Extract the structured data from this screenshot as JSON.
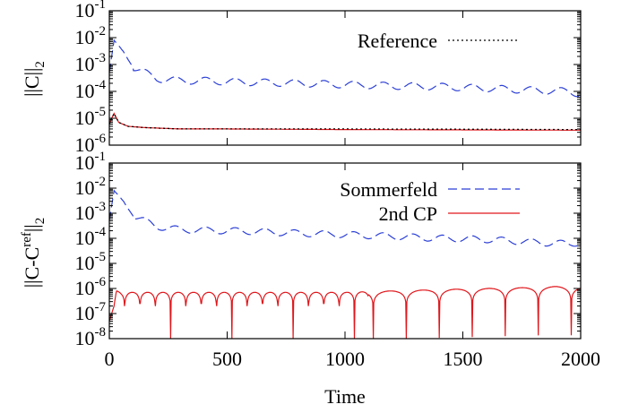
{
  "chart_data": [
    {
      "type": "line",
      "panel": "top",
      "ylabel": "||C||₂",
      "ylabel_parts": {
        "main": "||C||",
        "sub": "2"
      },
      "yscale": "log",
      "ylim": [
        1e-06,
        0.1
      ],
      "xlim": [
        0,
        2000
      ],
      "y_ticks": [
        "10-6",
        "10-5",
        "10-4",
        "10-3",
        "10-2",
        "10-1"
      ],
      "y_tick_exponents": [
        -6,
        -5,
        -4,
        -3,
        -2,
        -1
      ],
      "legend": {
        "position": "top-right",
        "entries": [
          {
            "label": "Reference",
            "style": "dotted",
            "color": "#000000"
          }
        ]
      },
      "series": [
        {
          "name": "Sommerfeld",
          "color": "#2b3fd6",
          "style": "dashed",
          "x": [
            0,
            20,
            40,
            60,
            80,
            100,
            150,
            200,
            300,
            400,
            500,
            600,
            800,
            1000,
            1200,
            1400,
            1600,
            1800,
            1950,
            2000
          ],
          "y": [
            0.0005,
            0.008,
            0.005,
            0.003,
            0.0015,
            0.0008,
            0.0005,
            0.0003,
            0.00025,
            0.00025,
            0.00023,
            0.00022,
            0.0002,
            0.00018,
            0.00016,
            0.00015,
            0.00013,
            0.00011,
            0.0001,
            8e-05
          ]
        },
        {
          "name": "2nd CP",
          "color": "#e0161b",
          "style": "solid",
          "x": [
            0,
            10,
            20,
            40,
            80,
            150,
            300,
            500,
            1000,
            1500,
            2000
          ],
          "y": [
            6e-06,
            1e-05,
            1.5e-05,
            7e-06,
            5e-06,
            4.5e-06,
            4e-06,
            4e-06,
            3.8e-06,
            3.7e-06,
            3.6e-06
          ]
        },
        {
          "name": "Reference",
          "color": "#000000",
          "style": "dotted",
          "x": [
            0,
            10,
            20,
            40,
            80,
            150,
            300,
            500,
            1000,
            1500,
            2000
          ],
          "y": [
            6e-06,
            1e-05,
            1.5e-05,
            7e-06,
            5e-06,
            4.5e-06,
            4e-06,
            4e-06,
            4e-06,
            3.9e-06,
            3.8e-06
          ]
        }
      ]
    },
    {
      "type": "line",
      "panel": "bottom",
      "ylabel": "||C-Cʳᵉᶠ||₂",
      "ylabel_parts": {
        "main": "||C-C",
        "sup": "ref",
        "close": "||",
        "sub": "2"
      },
      "xlabel": "Time",
      "yscale": "log",
      "ylim": [
        1e-08,
        0.1
      ],
      "xlim": [
        0,
        2000
      ],
      "x_ticks": [
        "0",
        "500",
        "1000",
        "1500",
        "2000"
      ],
      "x_tick_values": [
        0,
        500,
        1000,
        1500,
        2000
      ],
      "y_ticks": [
        "10-8",
        "10-7",
        "10-6",
        "10-5",
        "10-4",
        "10-3",
        "10-2",
        "10-1"
      ],
      "y_tick_exponents": [
        -8,
        -7,
        -6,
        -5,
        -4,
        -3,
        -2,
        -1
      ],
      "legend": {
        "position": "top-right",
        "entries": [
          {
            "label": "Sommerfeld",
            "style": "dashed",
            "color": "#2b3fd6"
          },
          {
            "label": "2nd CP",
            "style": "solid",
            "color": "#e0161b"
          }
        ]
      },
      "series": [
        {
          "name": "Sommerfeld",
          "color": "#2b3fd6",
          "style": "dashed",
          "x": [
            0,
            20,
            40,
            60,
            80,
            100,
            150,
            200,
            300,
            400,
            500,
            600,
            800,
            1000,
            1200,
            1400,
            1600,
            1800,
            1950,
            2000
          ],
          "y": [
            0.0005,
            0.008,
            0.005,
            0.003,
            0.0015,
            0.0008,
            0.0005,
            0.0003,
            0.00022,
            0.00021,
            0.0002,
            0.00019,
            0.00016,
            0.00014,
            0.00012,
            0.0001,
            9e-05,
            7e-05,
            6e-05,
            7e-05
          ]
        },
        {
          "name": "2nd CP",
          "color": "#e0161b",
          "style": "solid",
          "x": [
            0,
            10,
            20,
            30,
            50,
            100,
            200,
            400,
            600,
            800,
            1000,
            1200,
            1400,
            1600,
            1800,
            1900,
            2000
          ],
          "y": [
            5e-08,
            1e-07,
            2e-07,
            8e-07,
            7e-07,
            7e-07,
            7e-07,
            7e-07,
            7e-07,
            7e-07,
            7e-07,
            8e-07,
            9e-07,
            1e-06,
            1.1e-06,
            1.2e-06,
            1.1e-06
          ]
        }
      ]
    }
  ]
}
